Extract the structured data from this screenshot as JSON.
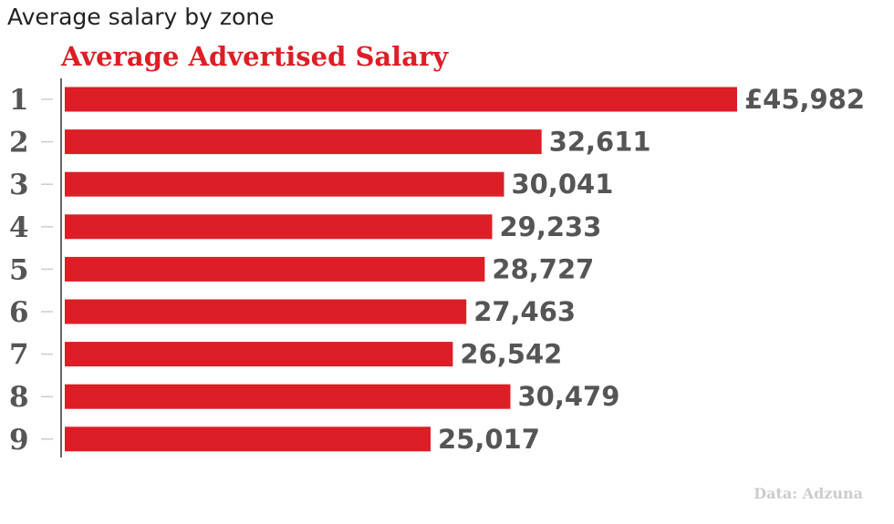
{
  "page": {
    "heading": "Average salary by zone"
  },
  "colors": {
    "bar": "#dc1e26",
    "title": "#dc1e26",
    "label": "#555555",
    "axis": "#333333",
    "tick": "#cccccc",
    "source": "#cccccc"
  },
  "chart_data": {
    "type": "bar",
    "orientation": "horizontal",
    "title": "Average Advertised Salary",
    "categories": [
      "1",
      "2",
      "3",
      "4",
      "5",
      "6",
      "7",
      "8",
      "9"
    ],
    "values": [
      45982,
      32611,
      30041,
      29233,
      28727,
      27463,
      26542,
      30479,
      25017
    ],
    "value_labels": [
      "£45,982",
      "32,611",
      "30,041",
      "29,233",
      "28,727",
      "27,463",
      "26,542",
      "30,479",
      "25,017"
    ],
    "xlim": [
      0,
      45982
    ],
    "grid": false,
    "legend": "none",
    "source": "Data: Adzuna"
  }
}
